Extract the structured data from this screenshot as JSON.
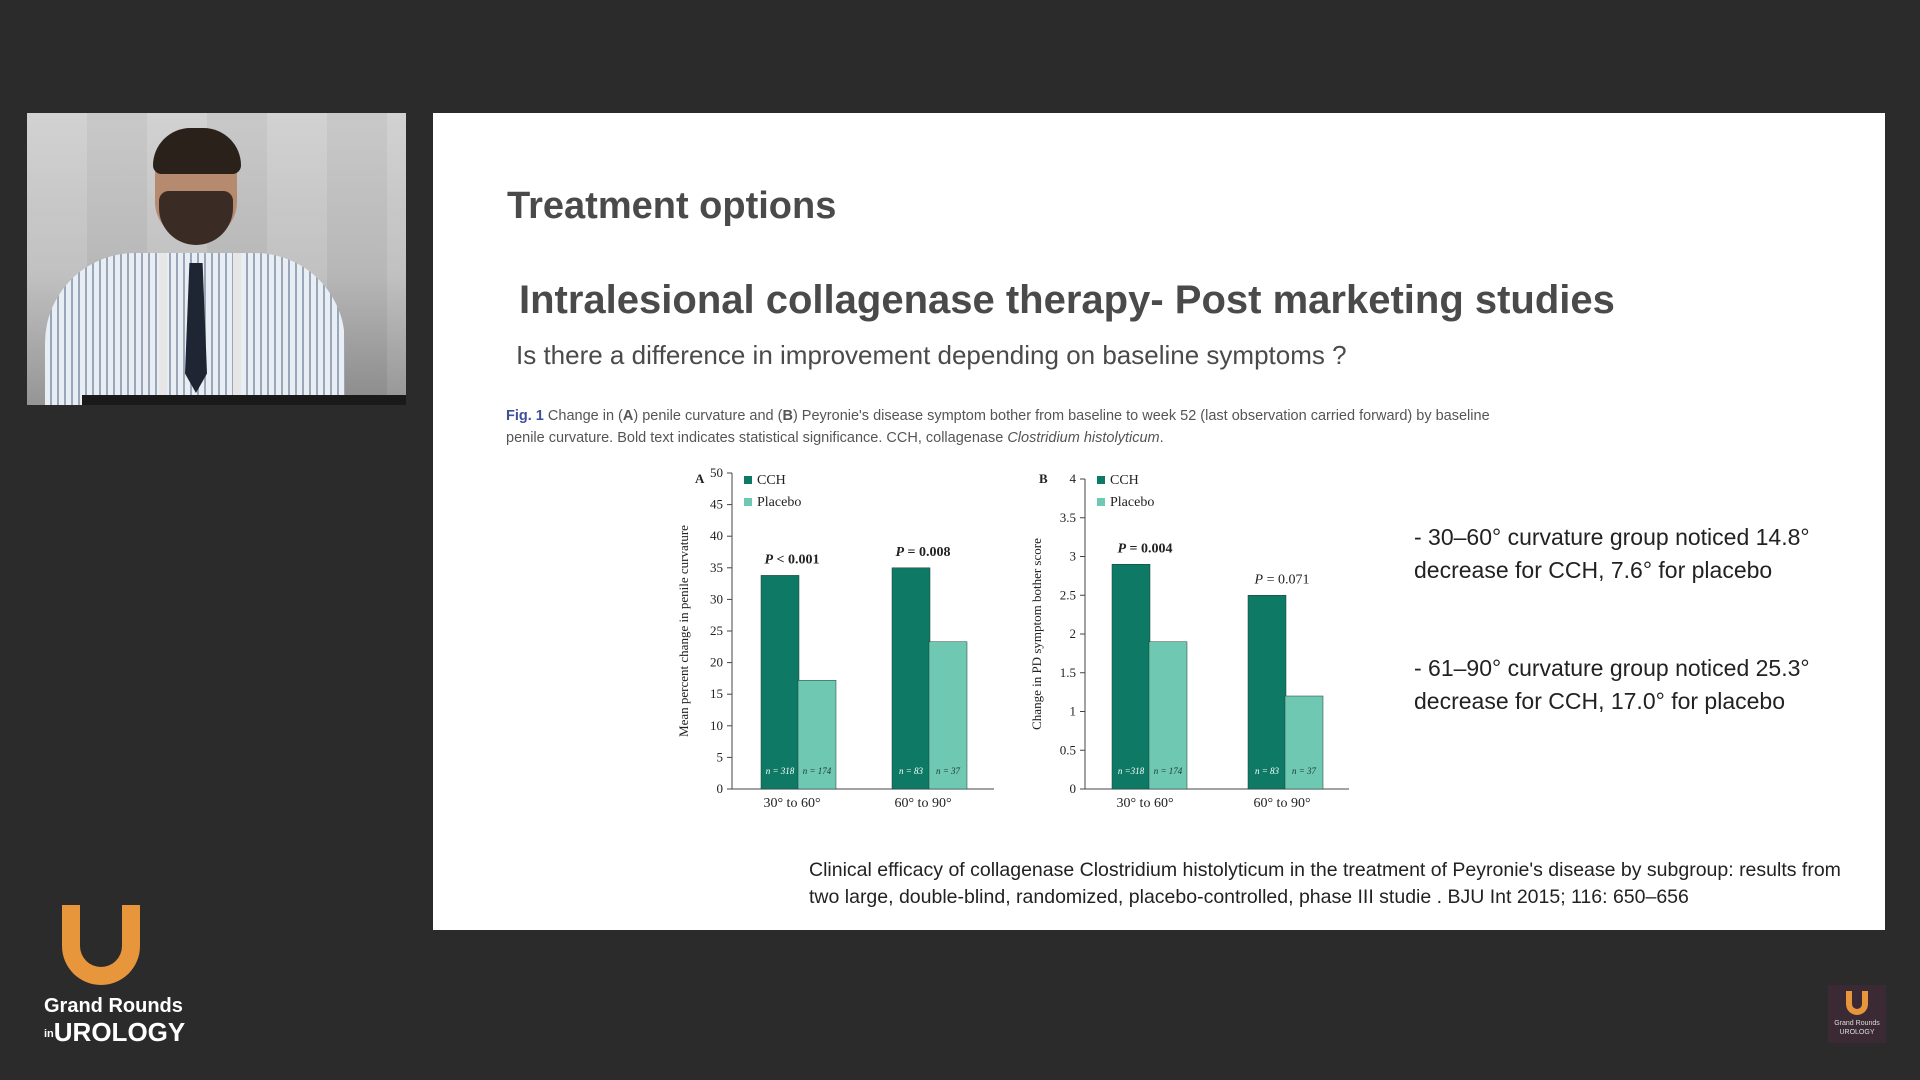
{
  "slide": {
    "title": "Treatment options",
    "subtitle": "Intralesional collagenase therapy- Post marketing studies",
    "question": "Is there a difference in improvement depending on baseline symptoms  ?",
    "caption": {
      "fig_label": "Fig. 1",
      "text_1": " Change in (",
      "a": "A",
      "text_2": ") penile curvature and (",
      "b": "B",
      "text_3": ") Peyronie's disease symptom bother from baseline to week 52 (last observation carried forward) by baseline penile curvature. Bold text indicates statistical significance. CCH, collagenase ",
      "italic": "Clostridium histolyticum",
      "end": "."
    },
    "bullets": [
      "- 30–60° curvature group noticed 14.8° decrease for CCH, 7.6° for placebo",
      "-  61–90° curvature group noticed 25.3° decrease for CCH, 17.0° for placebo"
    ],
    "reference": "Clinical efficacy of collagenase Clostridium histolyticum in the treatment of Peyronie's disease by subgroup: results from two large, double-blind, randomized, placebo-controlled, phase III studie . BJU Int 2015; 116: 650–656"
  },
  "logo": {
    "line1": "Grand Rounds",
    "line2_prefix": "in",
    "line2": "UROLOGY"
  },
  "colors": {
    "cch": "#0e7a65",
    "placebo": "#6ec8b2",
    "caption_fig": "#3d4f9a"
  },
  "chart_data": [
    {
      "type": "bar",
      "panel": "A",
      "categories": [
        "30° to 60°",
        "60° to 90°"
      ],
      "series": [
        {
          "name": "CCH",
          "values": [
            33.8,
            35.0
          ],
          "n": [
            "n = 318",
            "n = 83"
          ]
        },
        {
          "name": "Placebo",
          "values": [
            17.2,
            23.3
          ],
          "n": [
            "n = 174",
            "n = 37"
          ]
        }
      ],
      "ylabel": "Mean percent change in penile curvature",
      "ylim": [
        0,
        50
      ],
      "yticks": [
        0,
        5,
        10,
        15,
        20,
        25,
        30,
        35,
        40,
        45,
        50
      ],
      "ytick_labels": [
        "0",
        "5",
        "10",
        "15",
        "20",
        "25",
        "30",
        "35",
        "40",
        "45",
        "50"
      ],
      "pvalues": [
        {
          "label": "P",
          "rel": " < 0.001",
          "bold": true
        },
        {
          "label": "P",
          "rel": " = 0.008",
          "bold": true
        }
      ],
      "legend": "top-left"
    },
    {
      "type": "bar",
      "panel": "B",
      "categories": [
        "30° to 60°",
        "60° to 90°"
      ],
      "series": [
        {
          "name": "CCH",
          "values": [
            2.9,
            2.5
          ],
          "n": [
            "n =318",
            "n = 83"
          ]
        },
        {
          "name": "Placebo",
          "values": [
            1.9,
            1.2
          ],
          "n": [
            "n = 174",
            "n = 37"
          ]
        }
      ],
      "ylabel": "Change in PD symptom bother score",
      "ylim": [
        0,
        4
      ],
      "yticks": [
        0,
        0.5,
        1,
        1.5,
        2,
        2.5,
        3,
        3.5,
        4
      ],
      "ytick_labels": [
        "0",
        "0.5",
        "1",
        "1.5",
        "2",
        "2.5",
        "3",
        "3.5",
        "4"
      ],
      "pvalues": [
        {
          "label": "P",
          "rel": " = 0.004",
          "bold": true
        },
        {
          "label": "P",
          "rel": " = 0.071",
          "bold": false
        }
      ],
      "legend": "top-left"
    }
  ]
}
